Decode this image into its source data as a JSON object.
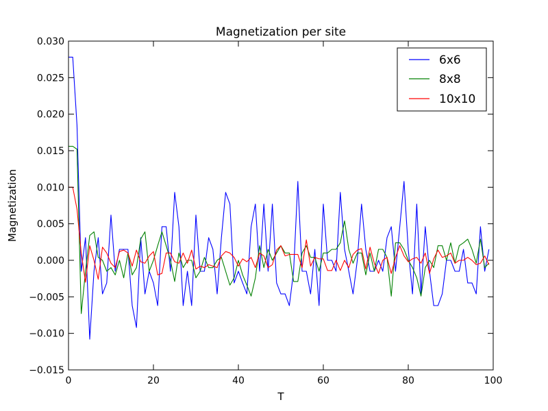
{
  "chart_data": {
    "type": "line",
    "title": "Magnetization per site",
    "xlabel": "T",
    "ylabel": "Magnetization",
    "xlim": [
      0,
      100
    ],
    "ylim": [
      -0.015,
      0.03
    ],
    "xticks": [
      0,
      20,
      40,
      60,
      80,
      100
    ],
    "xtick_labels": [
      "0",
      "20",
      "40",
      "60",
      "80",
      "100"
    ],
    "yticks": [
      -0.015,
      -0.01,
      -0.005,
      0.0,
      0.005,
      0.01,
      0.015,
      0.02,
      0.025,
      0.03
    ],
    "ytick_labels": [
      "−0.015",
      "−0.010",
      "−0.005",
      "0.000",
      "0.005",
      "0.010",
      "0.015",
      "0.020",
      "0.025",
      "0.030"
    ],
    "grid": false,
    "legend_position": "top-right",
    "series": [
      {
        "name": "6x6",
        "color": "#0000ff",
        "values": [
          0.0278,
          0.0278,
          0.0185,
          -0.0015,
          0.0031,
          -0.0108,
          -0.0015,
          0.0031,
          -0.0046,
          -0.0031,
          0.0062,
          -0.0015,
          0.0015,
          0.0015,
          0.0015,
          -0.0062,
          -0.0092,
          0.0031,
          -0.0046,
          -0.0015,
          -0.0031,
          -0.0062,
          0.0046,
          0.0046,
          -0.0015,
          0.0093,
          0.0046,
          -0.0062,
          -0.0015,
          -0.0062,
          0.0062,
          -0.0015,
          -0.0015,
          0.0031,
          0.0015,
          -0.0046,
          0.0031,
          0.0093,
          0.0077,
          -0.0031,
          -0.0015,
          -0.0031,
          -0.0046,
          0.0046,
          0.0077,
          -0.0015,
          0.0077,
          -0.0015,
          0.0077,
          -0.0031,
          -0.0046,
          -0.0046,
          -0.0062,
          -0.0015,
          0.0108,
          -0.0015,
          -0.0015,
          -0.0046,
          0.0015,
          -0.0062,
          0.0077,
          0.0,
          0.0,
          -0.0015,
          0.0093,
          0.0015,
          -0.0015,
          -0.0046,
          0.0,
          0.0077,
          0.0015,
          -0.0015,
          -0.0015,
          0.0,
          -0.0015,
          0.0031,
          0.0046,
          -0.0015,
          0.0046,
          0.0108,
          0.0015,
          -0.0046,
          0.0077,
          -0.0046,
          0.0046,
          -0.0015,
          -0.0062,
          -0.0062,
          -0.0046,
          0.0,
          0.0,
          -0.0015,
          -0.0015,
          0.0015,
          -0.0031,
          -0.0031,
          -0.0046,
          0.0046,
          -0.0015,
          0.0015
        ]
      },
      {
        "name": "8x8",
        "color": "#008000",
        "values": [
          0.0156,
          0.0156,
          0.0152,
          -0.0073,
          -0.0015,
          0.0034,
          0.0039,
          0.0004,
          0.0,
          -0.0015,
          -0.001,
          -0.002,
          0.0,
          -0.0024,
          0.001,
          -0.002,
          -0.001,
          0.0029,
          0.0039,
          -0.0015,
          0.0,
          0.002,
          0.0039,
          0.002,
          0.0,
          -0.0029,
          0.001,
          -0.001,
          0.0,
          0.0,
          -0.0024,
          -0.0015,
          0.0004,
          -0.001,
          -0.001,
          0.0,
          0.0004,
          -0.0015,
          -0.0034,
          -0.0024,
          0.0,
          -0.002,
          -0.0034,
          -0.0049,
          -0.0024,
          0.002,
          -0.001,
          0.0015,
          0.0,
          0.001,
          0.002,
          0.001,
          0.001,
          -0.0029,
          -0.0029,
          0.001,
          0.002,
          0.0004,
          0.0004,
          -0.0015,
          0.001,
          0.001,
          0.0015,
          0.0015,
          0.0024,
          0.0054,
          0.0015,
          -0.0004,
          0.001,
          0.001,
          -0.002,
          0.001,
          -0.0015,
          0.0015,
          0.0015,
          0.0004,
          -0.0049,
          0.0024,
          0.0024,
          0.0015,
          0.0,
          -0.001,
          -0.0024,
          -0.0049,
          -0.001,
          0.0,
          -0.001,
          0.002,
          0.002,
          0.0,
          0.0024,
          -0.0004,
          0.002,
          0.0024,
          0.0029,
          0.0015,
          -0.0004,
          0.0029,
          -0.001,
          -0.0004
        ]
      },
      {
        "name": "10x10",
        "color": "#ff0000",
        "values": [
          0.01,
          0.01,
          0.007,
          0.001,
          -0.003,
          0.002,
          0.0,
          -0.0026,
          0.0018,
          0.001,
          -0.0004,
          -0.001,
          0.0012,
          0.0014,
          0.001,
          -0.0008,
          0.0014,
          -0.0002,
          -0.0004,
          0.0006,
          0.0012,
          -0.002,
          -0.0018,
          0.001,
          0.001,
          -0.0002,
          -0.0004,
          0.001,
          -0.0004,
          0.0014,
          -0.0012,
          -0.0008,
          -0.001,
          -0.0006,
          -0.0008,
          -0.001,
          0.0006,
          0.0012,
          0.001,
          0.0004,
          -0.0008,
          0.0002,
          -0.0002,
          0.0004,
          -0.001,
          0.001,
          0.0006,
          -0.001,
          -0.0006,
          0.0014,
          0.002,
          0.0006,
          0.0008,
          0.0008,
          0.0008,
          -0.001,
          0.0028,
          -0.0008,
          0.0004,
          0.0002,
          0.0002,
          -0.0014,
          -0.0014,
          0.0,
          -0.0014,
          0.0,
          -0.001,
          0.0008,
          0.0014,
          0.0016,
          -0.0012,
          0.0018,
          -0.0004,
          -0.0018,
          0.0,
          0.0004,
          -0.0018,
          0.0004,
          0.002,
          0.0006,
          -0.0002,
          0.0002,
          0.0004,
          -0.0004,
          0.001,
          -0.0018,
          0.0002,
          0.0014,
          0.0004,
          0.0006,
          0.001,
          -0.0004,
          0.0,
          0.0,
          0.0004,
          0.0,
          -0.0006,
          -0.0004,
          0.0006,
          -0.0006
        ]
      }
    ]
  }
}
